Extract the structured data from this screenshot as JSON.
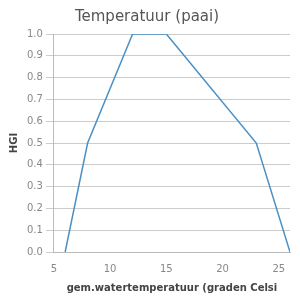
{
  "chart_data": {
    "type": "line",
    "title": "Temperatuur (paai)",
    "xlabel": "gem.watertemperatuur (graden Celsi",
    "ylabel": "HGI",
    "x": [
      6,
      8,
      12,
      15,
      23,
      26
    ],
    "values": [
      0.0,
      0.5,
      1.0,
      1.0,
      0.5,
      0.0
    ],
    "color": "#4a90c4",
    "xlim": [
      5,
      26
    ],
    "ylim": [
      0.0,
      1.0
    ],
    "xticks": [
      5,
      10,
      15,
      20,
      25
    ],
    "yticks": [
      {
        "value": 0.0,
        "label": "0.0"
      },
      0.1,
      0.2,
      0.3,
      0.4,
      0.5,
      0.6,
      0.7,
      0.8,
      0.9,
      {
        "value": 1.0,
        "label": "1.0"
      }
    ],
    "grid": "y"
  }
}
